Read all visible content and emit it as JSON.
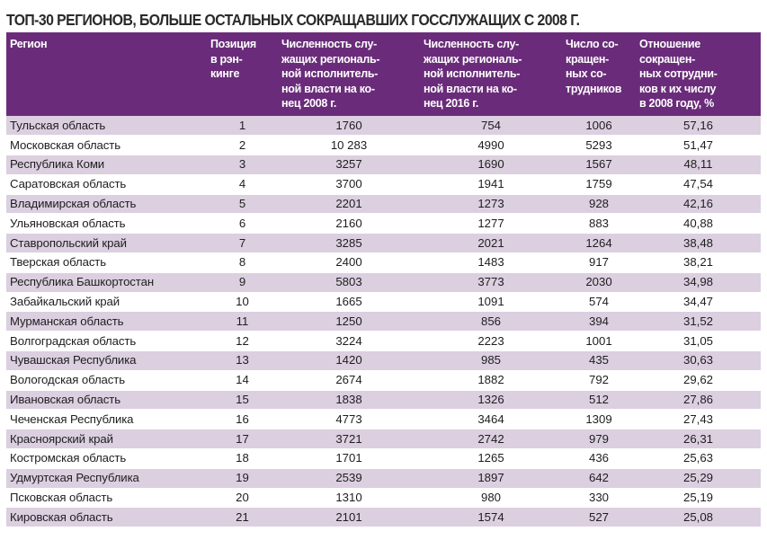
{
  "title": "ТОП-30 РЕГИОНОВ, БОЛЬШЕ ОСТАЛЬНЫХ СОКРАЩАВШИХ ГОССЛУЖАЩИХ С 2008 Г.",
  "colors": {
    "header_bg": "#6a2c7a",
    "header_text": "#ffffff",
    "stripe": "#dbcfe0"
  },
  "table": {
    "headers": [
      "Регион",
      "Позиция в рэн-кинге",
      "Численность слу-жащих региональ-ной исполнитель-ной власти на ко-нец 2008 г.",
      "Численность слу-жащих региональ-ной исполнитель-ной власти на ко-нец 2016 г.",
      "Число со-кращен-ных со-трудников",
      "Отношение сокращен-ных сотрудни-ков к их числу в 2008 году, %"
    ],
    "header_lines": [
      [
        "Регион"
      ],
      [
        "Позиция",
        "в рэн-",
        "кинге"
      ],
      [
        "Численность слу-",
        "жащих региональ-",
        "ной исполнитель-",
        "ной власти на ко-",
        "нец 2008 г."
      ],
      [
        "Численность слу-",
        "жащих региональ-",
        "ной исполнитель-",
        "ной власти на ко-",
        "нец 2016 г."
      ],
      [
        "Число со-",
        "кращен-",
        "ных со-",
        "трудников"
      ],
      [
        "Отношение",
        "сокращен-",
        "ных сотрудни-",
        "ков к их числу",
        "в 2008 году, %"
      ]
    ],
    "rows": [
      {
        "region": "Тульская область",
        "pos": "1",
        "y2008": "1760",
        "y2016": "754",
        "cut": "1006",
        "pct": "57,16"
      },
      {
        "region": "Московская область",
        "pos": "2",
        "y2008": "10 283",
        "y2016": "4990",
        "cut": "5293",
        "pct": "51,47"
      },
      {
        "region": "Республика Коми",
        "pos": "3",
        "y2008": "3257",
        "y2016": "1690",
        "cut": "1567",
        "pct": "48,11"
      },
      {
        "region": "Саратовская область",
        "pos": "4",
        "y2008": "3700",
        "y2016": "1941",
        "cut": "1759",
        "pct": "47,54"
      },
      {
        "region": "Владимирская область",
        "pos": "5",
        "y2008": "2201",
        "y2016": "1273",
        "cut": "928",
        "pct": "42,16"
      },
      {
        "region": "Ульяновская область",
        "pos": "6",
        "y2008": "2160",
        "y2016": "1277",
        "cut": "883",
        "pct": "40,88"
      },
      {
        "region": "Ставропольский край",
        "pos": "7",
        "y2008": "3285",
        "y2016": "2021",
        "cut": "1264",
        "pct": "38,48"
      },
      {
        "region": "Тверская область",
        "pos": "8",
        "y2008": "2400",
        "y2016": "1483",
        "cut": "917",
        "pct": "38,21"
      },
      {
        "region": "Республика Башкортостан",
        "pos": "9",
        "y2008": "5803",
        "y2016": "3773",
        "cut": "2030",
        "pct": "34,98"
      },
      {
        "region": "Забайкальский край",
        "pos": "10",
        "y2008": "1665",
        "y2016": "1091",
        "cut": "574",
        "pct": "34,47"
      },
      {
        "region": "Мурманская область",
        "pos": "11",
        "y2008": "1250",
        "y2016": "856",
        "cut": "394",
        "pct": "31,52"
      },
      {
        "region": "Волгоградская область",
        "pos": "12",
        "y2008": "3224",
        "y2016": "2223",
        "cut": "1001",
        "pct": "31,05"
      },
      {
        "region": "Чувашская Республика",
        "pos": "13",
        "y2008": "1420",
        "y2016": "985",
        "cut": "435",
        "pct": "30,63"
      },
      {
        "region": "Вологодская область",
        "pos": "14",
        "y2008": "2674",
        "y2016": "1882",
        "cut": "792",
        "pct": "29,62"
      },
      {
        "region": "Ивановская область",
        "pos": "15",
        "y2008": "1838",
        "y2016": "1326",
        "cut": "512",
        "pct": "27,86"
      },
      {
        "region": "Чеченская Республика",
        "pos": "16",
        "y2008": "4773",
        "y2016": "3464",
        "cut": "1309",
        "pct": "27,43"
      },
      {
        "region": "Красноярский край",
        "pos": "17",
        "y2008": "3721",
        "y2016": "2742",
        "cut": "979",
        "pct": "26,31"
      },
      {
        "region": "Костромская область",
        "pos": "18",
        "y2008": "1701",
        "y2016": "1265",
        "cut": "436",
        "pct": "25,63"
      },
      {
        "region": "Удмуртская Республика",
        "pos": "19",
        "y2008": "2539",
        "y2016": "1897",
        "cut": "642",
        "pct": "25,29"
      },
      {
        "region": "Псковская область",
        "pos": "20",
        "y2008": "1310",
        "y2016": "980",
        "cut": "330",
        "pct": "25,19"
      },
      {
        "region": "Кировская область",
        "pos": "21",
        "y2008": "2101",
        "y2016": "1574",
        "cut": "527",
        "pct": "25,08"
      }
    ]
  }
}
